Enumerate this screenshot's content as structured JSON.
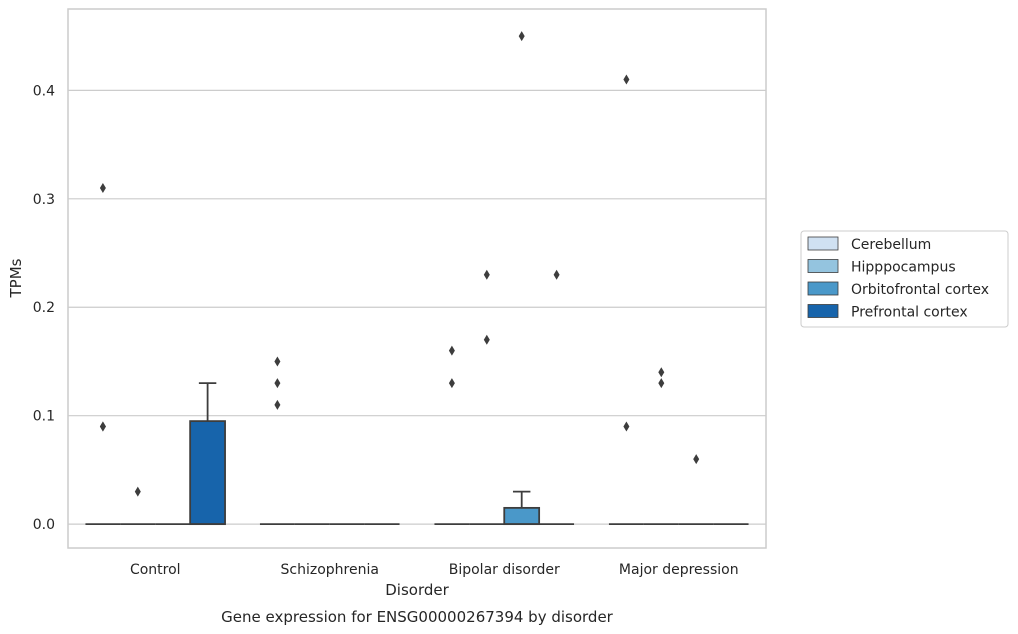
{
  "chart_data": {
    "type": "box",
    "title": "",
    "caption": "Gene expression for ENSG00000267394 by disorder",
    "xlabel": "Disorder",
    "ylabel": "TPMs",
    "ylim": [
      -0.022,
      0.475
    ],
    "yticks": [
      0.0,
      0.1,
      0.2,
      0.3,
      0.4
    ],
    "ytick_labels": [
      "0.0",
      "0.1",
      "0.2",
      "0.3",
      "0.4"
    ],
    "grid": "horizontal",
    "legend": "right",
    "categories": [
      "Control",
      "Schizophrenia",
      "Bipolar disorder",
      "Major depression"
    ],
    "series": [
      {
        "name": "Cerebellum",
        "color": "#d0e1f2",
        "boxes": [
          {
            "q1": 0,
            "median": 0,
            "q3": 0,
            "whisker_low": 0,
            "whisker_high": 0,
            "outliers": [
              0.31,
              0.09,
              0.09
            ]
          },
          {
            "q1": 0,
            "median": 0,
            "q3": 0,
            "whisker_low": 0,
            "whisker_high": 0,
            "outliers": [
              0.15,
              0.13,
              0.11
            ]
          },
          {
            "q1": 0,
            "median": 0,
            "q3": 0,
            "whisker_low": 0,
            "whisker_high": 0,
            "outliers": [
              0.16,
              0.13
            ]
          },
          {
            "q1": 0,
            "median": 0,
            "q3": 0,
            "whisker_low": 0,
            "whisker_high": 0,
            "outliers": [
              0.41,
              0.09
            ]
          }
        ]
      },
      {
        "name": "Hipppocampus",
        "color": "#94c4df",
        "boxes": [
          {
            "q1": 0,
            "median": 0,
            "q3": 0,
            "whisker_low": 0,
            "whisker_high": 0,
            "outliers": [
              0.03
            ]
          },
          {
            "q1": 0,
            "median": 0,
            "q3": 0,
            "whisker_low": 0,
            "whisker_high": 0,
            "outliers": []
          },
          {
            "q1": 0,
            "median": 0,
            "q3": 0,
            "whisker_low": 0,
            "whisker_high": 0,
            "outliers": [
              0.23,
              0.17
            ]
          },
          {
            "q1": 0,
            "median": 0,
            "q3": 0,
            "whisker_low": 0,
            "whisker_high": 0,
            "outliers": [
              0.14,
              0.13
            ]
          }
        ]
      },
      {
        "name": "Orbitofrontal cortex",
        "color": "#4a98c9",
        "boxes": [
          {
            "q1": 0,
            "median": 0,
            "q3": 0,
            "whisker_low": 0,
            "whisker_high": 0,
            "outliers": []
          },
          {
            "q1": 0,
            "median": 0,
            "q3": 0,
            "whisker_low": 0,
            "whisker_high": 0,
            "outliers": []
          },
          {
            "q1": 0,
            "median": 0,
            "q3": 0.015,
            "whisker_low": 0,
            "whisker_high": 0.03,
            "outliers": [
              0.45
            ]
          },
          {
            "q1": 0,
            "median": 0,
            "q3": 0,
            "whisker_low": 0,
            "whisker_high": 0,
            "outliers": [
              0.06
            ]
          }
        ]
      },
      {
        "name": "Prefrontal cortex",
        "color": "#1764ab",
        "boxes": [
          {
            "q1": 0,
            "median": 0,
            "q3": 0.095,
            "whisker_low": 0,
            "whisker_high": 0.13,
            "outliers": []
          },
          {
            "q1": 0,
            "median": 0,
            "q3": 0,
            "whisker_low": 0,
            "whisker_high": 0,
            "outliers": []
          },
          {
            "q1": 0,
            "median": 0,
            "q3": 0,
            "whisker_low": 0,
            "whisker_high": 0,
            "outliers": [
              0.23
            ]
          },
          {
            "q1": 0,
            "median": 0,
            "q3": 0,
            "whisker_low": 0,
            "whisker_high": 0,
            "outliers": []
          }
        ]
      }
    ]
  }
}
